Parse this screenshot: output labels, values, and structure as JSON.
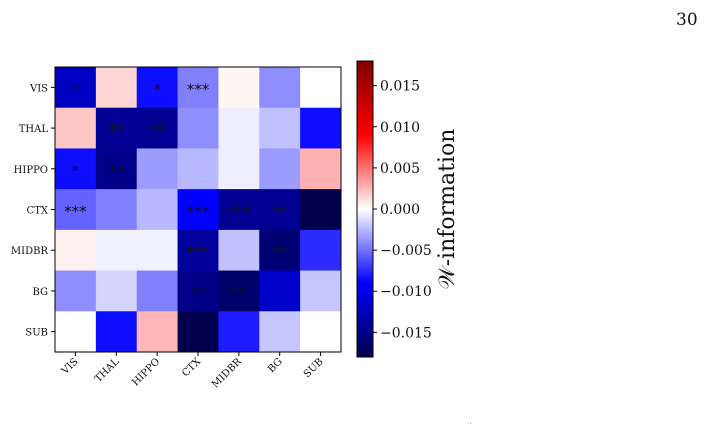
{
  "page_number": "30",
  "chart_data": {
    "type": "heatmap",
    "rows": [
      "VIS",
      "THAL",
      "HIPPO",
      "CTX",
      "MIDBR",
      "BG",
      "SUB"
    ],
    "cols": [
      "VIS",
      "THAL",
      "HIPPO",
      "CTX",
      "MIDBR",
      "BG",
      "SUB"
    ],
    "values": [
      [
        -0.012,
        0.0015,
        -0.0085,
        -0.0045,
        0.0003,
        -0.004,
        0.0
      ],
      [
        0.002,
        -0.0145,
        -0.0145,
        -0.004,
        -0.0006,
        -0.0022,
        -0.0085
      ],
      [
        -0.0085,
        -0.015,
        -0.0035,
        -0.0025,
        -0.0006,
        -0.0035,
        0.0028
      ],
      [
        -0.0055,
        -0.0045,
        -0.0025,
        -0.009,
        -0.0145,
        -0.0145,
        -0.0185
      ],
      [
        0.0005,
        -0.0005,
        -0.0005,
        -0.014,
        -0.0022,
        -0.016,
        -0.0075
      ],
      [
        -0.004,
        -0.0015,
        -0.0045,
        -0.015,
        -0.0165,
        -0.0115,
        -0.002
      ],
      [
        0.0,
        -0.0085,
        0.0025,
        -0.019,
        -0.008,
        -0.002,
        0.0
      ]
    ],
    "annotations": [
      [
        "*",
        "",
        "*",
        "***",
        "",
        "",
        ""
      ],
      [
        "",
        "**",
        "**",
        "",
        "",
        "",
        ""
      ],
      [
        "*",
        "**",
        "",
        "",
        "",
        "",
        ""
      ],
      [
        "***",
        "",
        "",
        "***",
        "***",
        "**",
        ""
      ],
      [
        "",
        "",
        "",
        "***",
        "",
        "**",
        ""
      ],
      [
        "",
        "",
        "",
        "**",
        "**",
        "",
        ""
      ],
      [
        "",
        "",
        "",
        "",
        "",
        "",
        ""
      ]
    ],
    "colorbar": {
      "range": [
        -0.018,
        0.018
      ],
      "ticks": [
        -0.015,
        -0.01,
        -0.005,
        0.0,
        0.005,
        0.01,
        0.015
      ],
      "tick_labels": [
        "−0.015",
        "−0.010",
        "−0.005",
        "0.000",
        "0.005",
        "0.010",
        "0.015"
      ],
      "label": "𝒲-information",
      "colormap": "seismic"
    }
  }
}
